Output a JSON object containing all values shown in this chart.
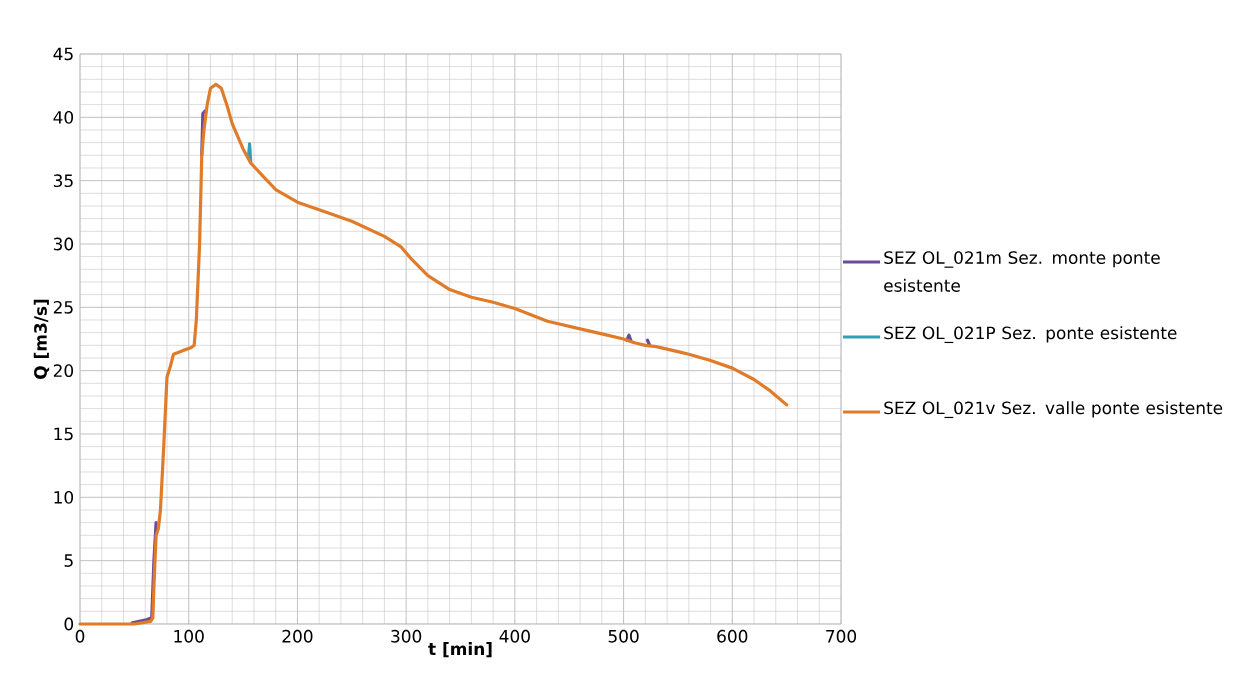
{
  "chart_data": {
    "type": "line",
    "xlabel": "t [min]",
    "ylabel": "Q [m3/s]",
    "xlim": [
      0,
      700
    ],
    "xticks": [
      0,
      100,
      200,
      300,
      400,
      500,
      600,
      700
    ],
    "ylim": [
      0,
      45
    ],
    "yticks": [
      0,
      5,
      10,
      15,
      20,
      25,
      30,
      35,
      40,
      45
    ],
    "grid": true,
    "legend": "right",
    "marker": "none",
    "line_style": "solid",
    "series": [
      {
        "name": "SEZ OL_021m Sez. monte ponte esistente",
        "color": "#6b4c9a",
        "x": [
          48,
          60,
          66,
          68,
          70,
          72,
          100,
          112,
          113,
          115,
          200,
          503,
          505,
          507,
          520,
          522,
          524
        ],
        "values": [
          0.1,
          0.3,
          0.5,
          5,
          8,
          null,
          null,
          37,
          40.3,
          40.5,
          null,
          22.4,
          22.8,
          22.3,
          null,
          22.4,
          22.0
        ]
      },
      {
        "name": "SEZ OL_021P Sez.  ponte esistente",
        "color": "#31a0b5",
        "x": [
          155,
          156,
          157
        ],
        "values": [
          36.9,
          37.9,
          36.5
        ]
      },
      {
        "name": "SEZ OL_021v Sez. valle ponte esistente",
        "color": "#e07b2a",
        "x": [
          0,
          50,
          65,
          67,
          68,
          70,
          72,
          74,
          77,
          80,
          83,
          86,
          95,
          102,
          105,
          107,
          110,
          112,
          114,
          117,
          120,
          125,
          130,
          135,
          140,
          150,
          157,
          170,
          180,
          200,
          220,
          250,
          280,
          295,
          305,
          320,
          340,
          360,
          380,
          400,
          430,
          460,
          480,
          500,
          510,
          520,
          530,
          540,
          550,
          560,
          580,
          600,
          620,
          635,
          650
        ],
        "values": [
          0,
          0,
          0.2,
          0.5,
          3,
          7,
          7.5,
          9,
          14,
          19.5,
          20.3,
          21.3,
          21.6,
          21.8,
          22,
          24,
          30,
          37,
          39,
          41,
          42.3,
          42.6,
          42.3,
          41,
          39.5,
          37.5,
          36.4,
          35.2,
          34.3,
          33.3,
          32.7,
          31.8,
          30.6,
          29.8,
          28.8,
          27.5,
          26.4,
          25.8,
          25.4,
          24.9,
          23.9,
          23.3,
          22.9,
          22.5,
          22.2,
          22,
          21.9,
          21.7,
          21.5,
          21.3,
          20.8,
          20.2,
          19.3,
          18.4,
          17.3
        ]
      }
    ]
  }
}
